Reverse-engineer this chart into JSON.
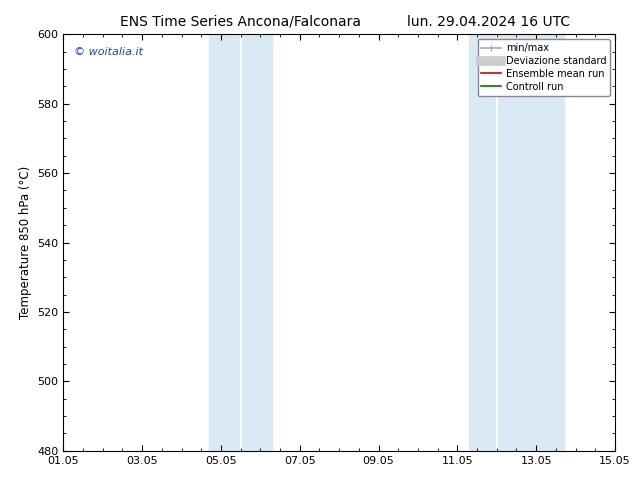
{
  "title_left": "ENS Time Series Ancona/Falconara",
  "title_right": "lun. 29.04.2024 16 UTC",
  "ylabel": "Temperature 850 hPa (°C)",
  "ylim": [
    480,
    600
  ],
  "yticks": [
    480,
    500,
    520,
    540,
    560,
    580,
    600
  ],
  "xlim": [
    0,
    14
  ],
  "xtick_labels": [
    "01.05",
    "03.05",
    "05.05",
    "07.05",
    "09.05",
    "11.05",
    "13.05",
    "15.05"
  ],
  "xtick_positions": [
    0,
    2,
    4,
    6,
    8,
    10,
    12,
    14
  ],
  "shaded_bands": [
    {
      "xmin": 3.7,
      "xmax": 4.5,
      "color": "#daeaf5"
    },
    {
      "xmin": 4.5,
      "xmax": 5.3,
      "color": "#daeaf5"
    },
    {
      "xmin": 10.3,
      "xmax": 11.0,
      "color": "#daeaf5"
    },
    {
      "xmin": 11.0,
      "xmax": 12.7,
      "color": "#daeaf5"
    }
  ],
  "watermark": "© woitalia.it",
  "watermark_color": "#1144cc",
  "legend_items": [
    {
      "label": "min/max",
      "color": "#aaaaaa",
      "lw": 1.2,
      "style": "minmax"
    },
    {
      "label": "Deviazione standard",
      "color": "#cccccc",
      "lw": 7,
      "style": "line"
    },
    {
      "label": "Ensemble mean run",
      "color": "#dd0000",
      "lw": 1.2,
      "style": "line"
    },
    {
      "label": "Controll run",
      "color": "#007700",
      "lw": 1.2,
      "style": "line"
    }
  ],
  "background_color": "#ffffff",
  "grid_color": "#dddddd",
  "spine_color": "#000000",
  "title_fontsize": 10,
  "label_fontsize": 8.5,
  "tick_fontsize": 8
}
